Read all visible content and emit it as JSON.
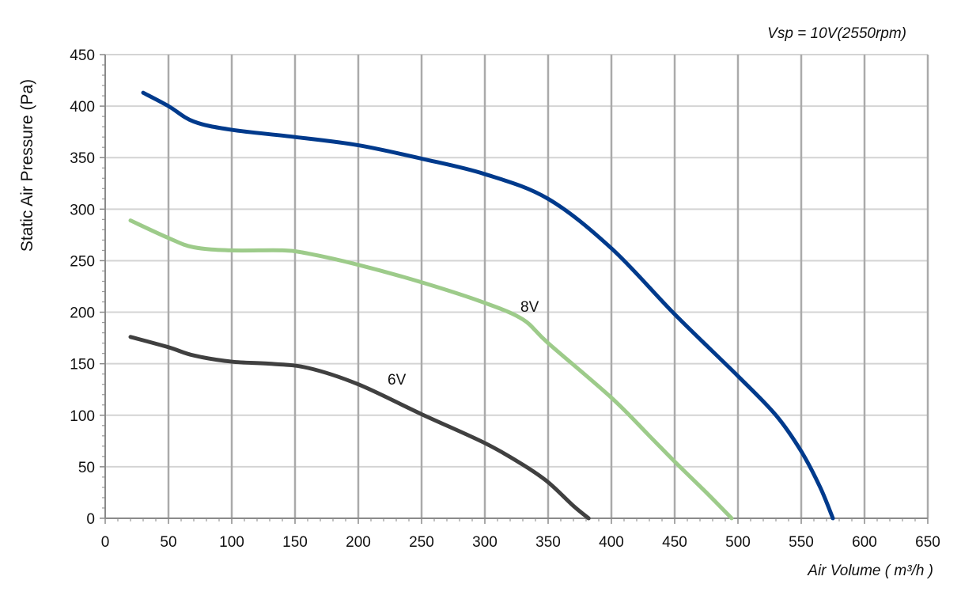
{
  "chart_data": {
    "type": "line",
    "title": "",
    "subtitle": "Vsp = 10V(2550rpm)",
    "xlabel": "Air Volume ( m³/h )",
    "ylabel": "Static Air Pressure  (Pa)",
    "xlim": [
      0,
      650
    ],
    "ylim": [
      0,
      450
    ],
    "x_ticks": [
      "0",
      "50",
      "100",
      "150",
      "200",
      "250",
      "300",
      "350",
      "400",
      "450",
      "500",
      "550",
      "600",
      "650"
    ],
    "y_ticks": [
      "0",
      "50",
      "100",
      "150",
      "200",
      "250",
      "300",
      "350",
      "400",
      "450"
    ],
    "grid": true,
    "series": [
      {
        "name": "",
        "color": "#003a8c",
        "points": [
          [
            30,
            413
          ],
          [
            50,
            400
          ],
          [
            70,
            385
          ],
          [
            100,
            377
          ],
          [
            150,
            370
          ],
          [
            200,
            362
          ],
          [
            250,
            349
          ],
          [
            300,
            334
          ],
          [
            350,
            310
          ],
          [
            400,
            262
          ],
          [
            450,
            198
          ],
          [
            500,
            138
          ],
          [
            530,
            100
          ],
          [
            550,
            65
          ],
          [
            565,
            30
          ],
          [
            575,
            0
          ]
        ]
      },
      {
        "name": "8V",
        "color": "#9dcb8a",
        "points": [
          [
            20,
            289
          ],
          [
            50,
            272
          ],
          [
            70,
            263
          ],
          [
            100,
            260
          ],
          [
            140,
            260
          ],
          [
            160,
            257
          ],
          [
            200,
            246
          ],
          [
            250,
            229
          ],
          [
            300,
            209
          ],
          [
            330,
            193
          ],
          [
            350,
            170
          ],
          [
            400,
            117
          ],
          [
            430,
            80
          ],
          [
            450,
            55
          ],
          [
            475,
            25
          ],
          [
            495,
            0
          ]
        ]
      },
      {
        "name": "6V",
        "color": "#404040",
        "points": [
          [
            20,
            176
          ],
          [
            50,
            166
          ],
          [
            70,
            158
          ],
          [
            100,
            152
          ],
          [
            130,
            150
          ],
          [
            160,
            146
          ],
          [
            200,
            130
          ],
          [
            250,
            101
          ],
          [
            300,
            73
          ],
          [
            330,
            52
          ],
          [
            350,
            35
          ],
          [
            370,
            12
          ],
          [
            382,
            0
          ]
        ]
      }
    ]
  }
}
